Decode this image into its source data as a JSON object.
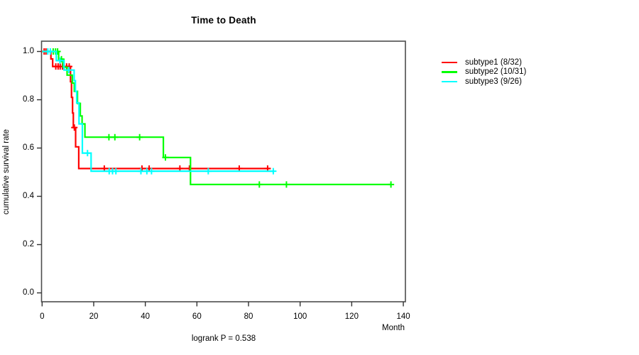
{
  "title": "Time to Death",
  "footer_annotation": "logrank P = 0.538",
  "x_axis": {
    "label": "Month",
    "tick_labels": [
      "0",
      "20",
      "40",
      "60",
      "80",
      "100",
      "120",
      "140"
    ],
    "tick_values": [
      0,
      20,
      40,
      60,
      80,
      100,
      120,
      140
    ]
  },
  "y_axis": {
    "label": "cumulative survival rate",
    "tick_labels": [
      "0.0",
      "0.2",
      "0.4",
      "0.6",
      "0.8",
      "1.0"
    ],
    "tick_values": [
      0,
      0.2,
      0.4,
      0.6,
      0.8,
      1.0
    ]
  },
  "chart_data": {
    "type": "line",
    "style": "kaplan-meier-step-curves",
    "title": "Time to Death",
    "xlabel": "Month",
    "ylabel": "cumulative survival rate",
    "xlim": [
      0,
      140
    ],
    "ylim": [
      0,
      1
    ],
    "grid": false,
    "legend_position": "right-outside",
    "annotation": "logrank P = 0.538",
    "series": [
      {
        "name": "subtype1 (8/32)",
        "group": "subtype1",
        "events_over_n": "8/32",
        "color": "#ff0000",
        "steps": [
          [
            0,
            1.0
          ],
          [
            3.4,
            0.969
          ],
          [
            4.1,
            0.938
          ],
          [
            11.0,
            0.875
          ],
          [
            11.4,
            0.81
          ],
          [
            11.8,
            0.745
          ],
          [
            12.1,
            0.685
          ],
          [
            13.0,
            0.605
          ],
          [
            14.2,
            0.515
          ]
        ],
        "end_month": 88.5,
        "censor_marks": [
          [
            0.8,
            1.0
          ],
          [
            1.5,
            1.0
          ],
          [
            5.3,
            0.938
          ],
          [
            6.2,
            0.938
          ],
          [
            7.0,
            0.938
          ],
          [
            7.9,
            0.938
          ],
          [
            9.5,
            0.938
          ],
          [
            10.5,
            0.938
          ],
          [
            12.5,
            0.685
          ],
          [
            24.1,
            0.515
          ],
          [
            38.7,
            0.515
          ],
          [
            41.5,
            0.515
          ],
          [
            53.4,
            0.515
          ],
          [
            57.1,
            0.515
          ],
          [
            76.4,
            0.515
          ],
          [
            87.4,
            0.515
          ]
        ]
      },
      {
        "name": "subtype2 (10/31)",
        "group": "subtype2",
        "events_over_n": "10/31",
        "color": "#00ff00",
        "steps": [
          [
            0,
            1.0
          ],
          [
            6.4,
            0.968
          ],
          [
            8.1,
            0.935
          ],
          [
            9.7,
            0.902
          ],
          [
            11.7,
            0.869
          ],
          [
            12.5,
            0.835
          ],
          [
            13.7,
            0.785
          ],
          [
            14.8,
            0.733
          ],
          [
            15.5,
            0.7
          ],
          [
            16.6,
            0.645
          ],
          [
            47.0,
            0.561
          ],
          [
            57.5,
            0.449
          ]
        ],
        "end_month": 135.2,
        "censor_marks": [
          [
            4.3,
            1.0
          ],
          [
            5.2,
            1.0
          ],
          [
            6.0,
            1.0
          ],
          [
            7.5,
            0.968
          ],
          [
            25.9,
            0.645
          ],
          [
            28.2,
            0.645
          ],
          [
            37.8,
            0.645
          ],
          [
            47.8,
            0.561
          ],
          [
            84.2,
            0.449
          ],
          [
            94.7,
            0.449
          ],
          [
            135.2,
            0.449
          ]
        ]
      },
      {
        "name": "subtype3 (9/26)",
        "group": "subtype3",
        "events_over_n": "9/26",
        "color": "#00ffff",
        "steps": [
          [
            0,
            1.0
          ],
          [
            5.5,
            0.962
          ],
          [
            8.5,
            0.923
          ],
          [
            12.4,
            0.879
          ],
          [
            12.9,
            0.835
          ],
          [
            13.4,
            0.787
          ],
          [
            14.3,
            0.7
          ],
          [
            15.6,
            0.579
          ],
          [
            19.0,
            0.504
          ]
        ],
        "end_month": 90.0,
        "censor_marks": [
          [
            2.2,
            1.0
          ],
          [
            3.2,
            1.0
          ],
          [
            6.9,
            0.962
          ],
          [
            10.4,
            0.923
          ],
          [
            17.6,
            0.579
          ],
          [
            26.0,
            0.504
          ],
          [
            27.3,
            0.504
          ],
          [
            28.6,
            0.504
          ],
          [
            38.3,
            0.504
          ],
          [
            40.6,
            0.504
          ],
          [
            42.4,
            0.504
          ],
          [
            64.4,
            0.504
          ],
          [
            89.6,
            0.504
          ]
        ]
      }
    ]
  }
}
